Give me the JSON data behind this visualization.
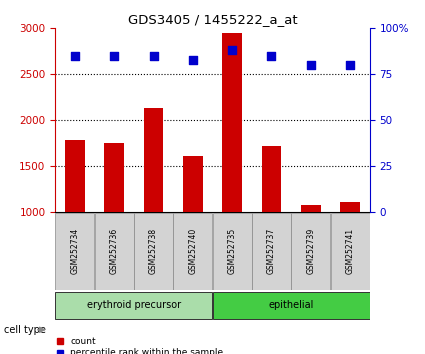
{
  "title": "GDS3405 / 1455222_a_at",
  "samples": [
    "GSM252734",
    "GSM252736",
    "GSM252738",
    "GSM252740",
    "GSM252735",
    "GSM252737",
    "GSM252739",
    "GSM252741"
  ],
  "counts": [
    1790,
    1750,
    2130,
    1610,
    2950,
    1720,
    1080,
    1110
  ],
  "percentile_ranks": [
    85,
    85,
    85,
    83,
    88,
    85,
    80,
    80
  ],
  "cell_type_groups": [
    {
      "label": "erythroid precursor",
      "start": 0,
      "end": 3,
      "color": "#aaddaa"
    },
    {
      "label": "epithelial",
      "start": 4,
      "end": 7,
      "color": "#44cc44"
    }
  ],
  "bar_color": "#cc0000",
  "dot_color": "#0000cc",
  "ylim_left": [
    1000,
    3000
  ],
  "ylim_right": [
    0,
    100
  ],
  "yticks_left": [
    1000,
    1500,
    2000,
    2500,
    3000
  ],
  "yticks_right": [
    0,
    25,
    50,
    75,
    100
  ],
  "gridline_values": [
    1500,
    2000,
    2500
  ],
  "left_axis_color": "#cc0000",
  "right_axis_color": "#0000cc",
  "sample_box_color": "#d3d3d3",
  "legend_items": [
    {
      "color": "#cc0000",
      "label": "count"
    },
    {
      "color": "#0000cc",
      "label": "percentile rank within the sample"
    }
  ],
  "cell_type_label": "cell type"
}
